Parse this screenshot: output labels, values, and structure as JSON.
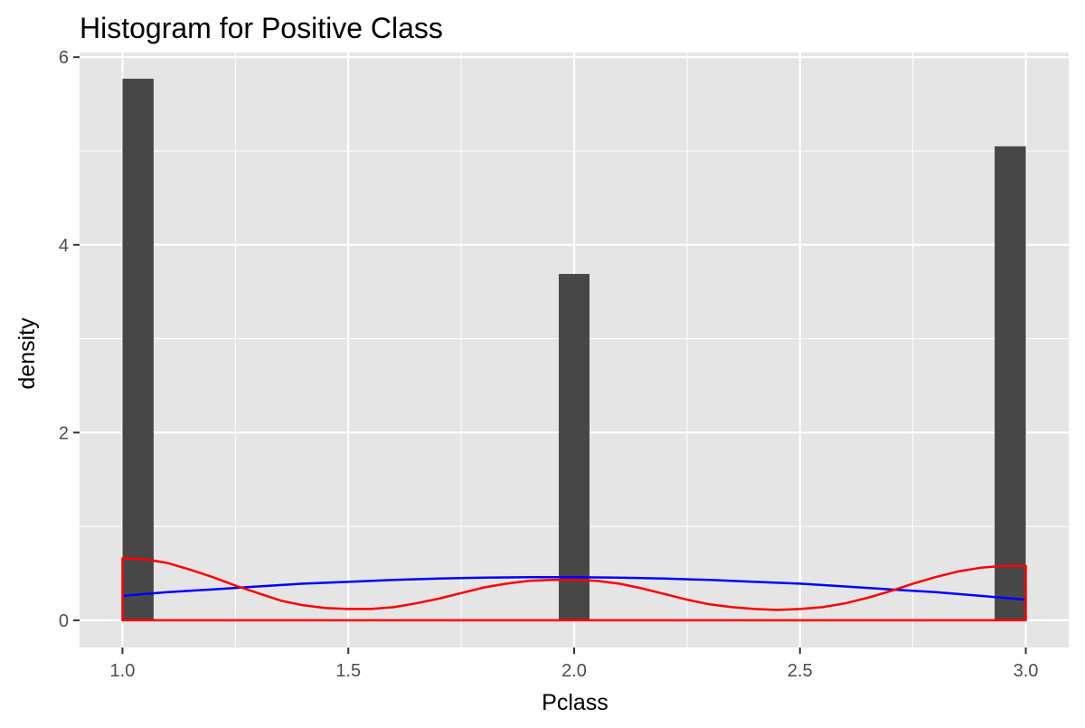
{
  "chart_data": {
    "type": "bar",
    "title": "Histogram for Positive Class",
    "xlabel": "Pclass",
    "ylabel": "density",
    "xlim": [
      0.905,
      3.095
    ],
    "ylim": [
      -0.29,
      6.05
    ],
    "x_ticks": [
      1.0,
      1.5,
      2.0,
      2.5,
      3.0
    ],
    "x_tick_labels": [
      "1.0",
      "1.5",
      "2.0",
      "2.5",
      "3.0"
    ],
    "y_ticks": [
      0,
      2,
      4,
      6
    ],
    "y_tick_labels": [
      "0",
      "2",
      "4",
      "6"
    ],
    "grid": true,
    "background": "#e5e5e5",
    "gridline_color": "#ffffff",
    "bar_color": "#474747",
    "bars": [
      {
        "x_start": 1.0,
        "x_end": 1.069,
        "density": 5.77
      },
      {
        "x_start": 1.966,
        "x_end": 2.034,
        "density": 3.69
      },
      {
        "x_start": 2.931,
        "x_end": 3.0,
        "density": 5.05
      }
    ],
    "series": [
      {
        "color": "#0000ff",
        "type": "line",
        "x": [
          1.0,
          1.1,
          1.2,
          1.3,
          1.4,
          1.5,
          1.6,
          1.7,
          1.8,
          1.9,
          2.0,
          2.1,
          2.2,
          2.3,
          2.4,
          2.5,
          2.6,
          2.7,
          2.8,
          2.9,
          3.0
        ],
        "y": [
          0.26,
          0.3,
          0.33,
          0.36,
          0.39,
          0.41,
          0.43,
          0.445,
          0.455,
          0.46,
          0.46,
          0.455,
          0.445,
          0.43,
          0.41,
          0.39,
          0.36,
          0.33,
          0.3,
          0.26,
          0.22
        ]
      },
      {
        "color": "#ff0000",
        "type": "area-outline",
        "x": [
          1.0,
          1.05,
          1.1,
          1.15,
          1.2,
          1.25,
          1.3,
          1.35,
          1.4,
          1.45,
          1.5,
          1.55,
          1.6,
          1.65,
          1.7,
          1.75,
          1.8,
          1.85,
          1.9,
          1.95,
          2.0,
          2.05,
          2.1,
          2.15,
          2.2,
          2.25,
          2.3,
          2.35,
          2.4,
          2.45,
          2.5,
          2.55,
          2.6,
          2.65,
          2.7,
          2.75,
          2.8,
          2.85,
          2.9,
          2.95,
          3.0
        ],
        "y": [
          0.66,
          0.65,
          0.61,
          0.54,
          0.46,
          0.37,
          0.29,
          0.21,
          0.16,
          0.13,
          0.12,
          0.12,
          0.14,
          0.18,
          0.23,
          0.29,
          0.35,
          0.39,
          0.42,
          0.43,
          0.43,
          0.42,
          0.39,
          0.34,
          0.28,
          0.22,
          0.17,
          0.14,
          0.12,
          0.11,
          0.12,
          0.14,
          0.18,
          0.24,
          0.31,
          0.39,
          0.46,
          0.52,
          0.56,
          0.58,
          0.58
        ]
      }
    ]
  }
}
